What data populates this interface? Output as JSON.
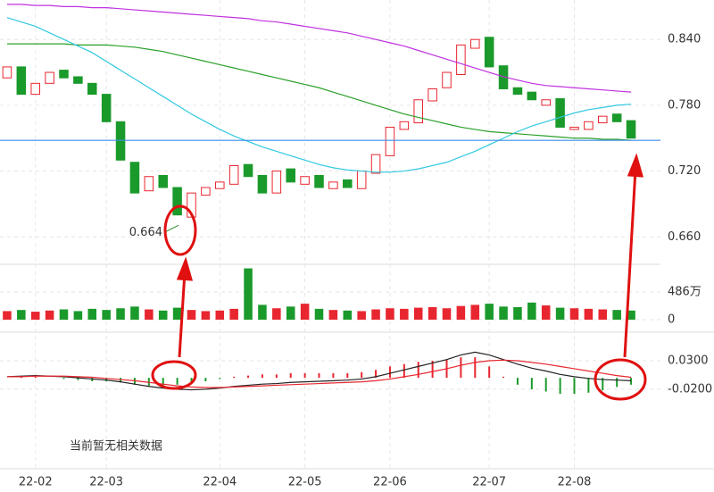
{
  "chart_data": [
    {
      "type": "candlestick",
      "categories": [
        null,
        null,
        "22-02",
        null,
        null,
        null,
        null,
        "22-03",
        null,
        null,
        null,
        null,
        null,
        null,
        null,
        "22-04",
        null,
        null,
        null,
        null,
        null,
        "22-05",
        null,
        null,
        null,
        null,
        null,
        "22-06",
        null,
        null,
        null,
        null,
        null,
        null,
        "22-07",
        null,
        null,
        null,
        null,
        null,
        "22-08",
        null,
        null,
        null,
        null
      ],
      "open": [
        0.805,
        0.815,
        0.79,
        0.8,
        0.812,
        0.806,
        0.8,
        0.79,
        0.765,
        0.728,
        0.702,
        0.716,
        0.705,
        0.678,
        0.698,
        0.704,
        0.708,
        0.726,
        0.716,
        0.7,
        0.722,
        0.708,
        0.716,
        0.704,
        0.712,
        0.704,
        0.718,
        0.734,
        0.758,
        0.764,
        0.784,
        0.796,
        0.808,
        0.832,
        0.842,
        0.816,
        0.796,
        0.792,
        0.78,
        0.786,
        0.758,
        0.758,
        0.764,
        0.772,
        0.766
      ],
      "close": [
        0.815,
        0.79,
        0.8,
        0.81,
        0.805,
        0.8,
        0.79,
        0.765,
        0.73,
        0.7,
        0.715,
        0.705,
        0.68,
        0.7,
        0.705,
        0.71,
        0.725,
        0.715,
        0.7,
        0.72,
        0.71,
        0.715,
        0.705,
        0.71,
        0.705,
        0.72,
        0.735,
        0.76,
        0.765,
        0.785,
        0.795,
        0.81,
        0.835,
        0.84,
        0.815,
        0.795,
        0.79,
        0.785,
        0.785,
        0.76,
        0.76,
        0.765,
        0.77,
        0.765,
        0.75
      ],
      "up_color": "#e8262f",
      "down_color": "#1a9a2b",
      "series": [
        {
          "color": "#c030e0",
          "values": [
            0.872,
            0.872,
            0.871,
            0.871,
            0.87,
            0.87,
            0.869,
            0.869,
            0.868,
            0.867,
            0.866,
            0.865,
            0.864,
            0.863,
            0.862,
            0.861,
            0.86,
            0.859,
            0.857,
            0.856,
            0.854,
            0.852,
            0.85,
            0.848,
            0.846,
            0.843,
            0.84,
            0.837,
            0.834,
            0.83,
            0.826,
            0.822,
            0.818,
            0.814,
            0.81,
            0.806,
            0.803,
            0.8,
            0.798,
            0.797,
            0.796,
            0.795,
            0.794,
            0.793,
            0.792
          ]
        },
        {
          "color": "#2aa02a",
          "values": [
            0.836,
            0.836,
            0.836,
            0.836,
            0.836,
            0.835,
            0.835,
            0.835,
            0.834,
            0.833,
            0.831,
            0.829,
            0.826,
            0.823,
            0.82,
            0.817,
            0.814,
            0.811,
            0.808,
            0.805,
            0.802,
            0.799,
            0.796,
            0.792,
            0.788,
            0.784,
            0.78,
            0.776,
            0.772,
            0.769,
            0.766,
            0.763,
            0.76,
            0.758,
            0.756,
            0.755,
            0.754,
            0.753,
            0.752,
            0.751,
            0.75,
            0.75,
            0.749,
            0.749,
            0.748
          ]
        },
        {
          "color": "#30c8e0",
          "values": [
            0.86,
            0.856,
            0.852,
            0.846,
            0.84,
            0.834,
            0.828,
            0.82,
            0.812,
            0.804,
            0.796,
            0.788,
            0.78,
            0.772,
            0.765,
            0.758,
            0.752,
            0.747,
            0.742,
            0.738,
            0.734,
            0.73,
            0.726,
            0.723,
            0.721,
            0.72,
            0.719,
            0.719,
            0.72,
            0.722,
            0.725,
            0.728,
            0.733,
            0.738,
            0.744,
            0.75,
            0.756,
            0.761,
            0.765,
            0.769,
            0.773,
            0.776,
            0.778,
            0.78,
            0.781
          ]
        }
      ],
      "reference_line": 0.748,
      "reference_color": "#3a8ee6",
      "min_label": 0.664,
      "ylim": [
        0.648,
        0.876
      ],
      "yticks": [
        {
          "value": 0.84,
          "label": "0.840"
        },
        {
          "value": 0.78,
          "label": "0.780"
        },
        {
          "value": 0.72,
          "label": "0.720"
        },
        {
          "value": 0.66,
          "label": "0.660"
        }
      ]
    },
    {
      "type": "bar",
      "values": [
        150,
        170,
        140,
        160,
        180,
        150,
        190,
        170,
        200,
        230,
        180,
        160,
        210,
        170,
        150,
        160,
        190,
        900,
        260,
        200,
        230,
        280,
        190,
        170,
        160,
        150,
        180,
        200,
        190,
        210,
        220,
        200,
        240,
        260,
        280,
        230,
        220,
        300,
        250,
        210,
        200,
        190,
        180,
        170,
        160
      ],
      "ylim": [
        0,
        940
      ],
      "yticks": [
        {
          "value": 486,
          "label": "486万"
        },
        0
      ]
    },
    {
      "type": "macd",
      "values": [
        0.0,
        0.002,
        0.002,
        0.0,
        -0.002,
        -0.004,
        -0.006,
        -0.006,
        -0.008,
        -0.012,
        -0.014,
        -0.014,
        -0.012,
        -0.01,
        -0.006,
        -0.002,
        0.002,
        0.004,
        0.006,
        0.006,
        0.008,
        0.008,
        0.008,
        0.008,
        0.008,
        0.01,
        0.014,
        0.02,
        0.024,
        0.028,
        0.03,
        0.032,
        0.036,
        0.036,
        0.02,
        0.002,
        -0.012,
        -0.02,
        -0.024,
        -0.028,
        -0.028,
        -0.026,
        -0.022,
        -0.016,
        -0.012
      ],
      "series": [
        {
          "color": "#222222",
          "values": [
            0.002,
            0.003,
            0.004,
            0.003,
            0.002,
            0.0,
            -0.002,
            -0.004,
            -0.007,
            -0.011,
            -0.015,
            -0.018,
            -0.02,
            -0.021,
            -0.02,
            -0.018,
            -0.015,
            -0.013,
            -0.011,
            -0.01,
            -0.008,
            -0.007,
            -0.006,
            -0.005,
            -0.004,
            -0.002,
            0.002,
            0.008,
            0.014,
            0.02,
            0.026,
            0.032,
            0.04,
            0.045,
            0.04,
            0.032,
            0.024,
            0.017,
            0.012,
            0.006,
            0.002,
            -0.001,
            -0.003,
            -0.004,
            -0.005
          ]
        },
        {
          "color": "#e8262f",
          "values": [
            0.002,
            0.002,
            0.003,
            0.003,
            0.003,
            0.002,
            0.001,
            -0.001,
            -0.003,
            -0.005,
            -0.008,
            -0.011,
            -0.014,
            -0.016,
            -0.017,
            -0.017,
            -0.016,
            -0.015,
            -0.014,
            -0.013,
            -0.012,
            -0.011,
            -0.01,
            -0.009,
            -0.008,
            -0.007,
            -0.005,
            -0.002,
            0.002,
            0.006,
            0.011,
            0.016,
            0.022,
            0.027,
            0.03,
            0.031,
            0.03,
            0.027,
            0.024,
            0.02,
            0.016,
            0.012,
            0.008,
            0.004,
            0.001
          ]
        }
      ],
      "ylim": [
        -0.042,
        0.0675
      ],
      "yticks": [
        {
          "value": 0.03,
          "label": "0.0300"
        },
        {
          "value": -0.02,
          "label": "-0.0200"
        }
      ]
    }
  ],
  "notice": "当前暂无相关数据"
}
